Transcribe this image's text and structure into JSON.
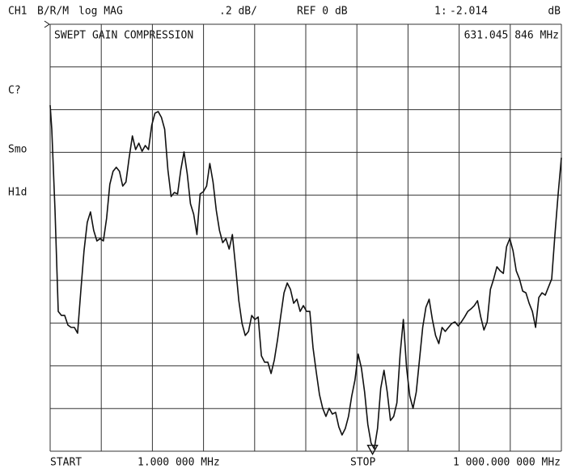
{
  "chart_data": {
    "type": "line",
    "channel": "CH1",
    "measurement": "B/R/M",
    "format": "log MAG",
    "scale": ".2 dB/",
    "reference": "REF 0 dB",
    "title": "SWEPT GAIN COMPRESSION",
    "softkeys": [
      "C?",
      "Smo",
      "H1d"
    ],
    "start_label": "START",
    "start_value": "1.000 000 MHz",
    "stop_label": "STOP",
    "stop_value": "1 000.000 000 MHz",
    "marker": {
      "number_label": "1:",
      "value": -2.014,
      "value_label": "-2.014",
      "unit": "dB",
      "x": 631.045846,
      "x_label": "631.045 846 MHz"
    },
    "xlim": [
      1,
      1000
    ],
    "ylim": [
      -2,
      0
    ],
    "color": "#111111",
    "grid": true,
    "x": [
      1.0,
      4.2,
      10.5,
      16.8,
      23.1,
      29.4,
      35.7,
      42.0,
      48.3,
      54.6,
      60.9,
      67.2,
      73.5,
      79.8,
      86.1,
      92.4,
      98.7,
      105.0,
      111.3,
      117.6,
      123.9,
      130.2,
      136.5,
      142.8,
      149.1,
      155.4,
      161.7,
      168.0,
      174.3,
      180.6,
      186.9,
      193.2,
      199.5,
      205.8,
      212.1,
      218.4,
      224.8,
      231.1,
      237.4,
      243.7,
      250.0,
      256.3,
      262.6,
      268.9,
      275.2,
      281.5,
      287.8,
      294.1,
      300.4,
      306.7,
      313.0,
      319.3,
      325.6,
      331.9,
      338.2,
      344.5,
      350.8,
      357.1,
      363.4,
      369.7,
      376.0,
      382.3,
      388.6,
      394.9,
      401.2,
      407.5,
      413.8,
      420.1,
      426.4,
      432.7,
      439.1,
      445.4,
      451.7,
      458.0,
      464.3,
      470.6,
      476.9,
      483.2,
      489.5,
      495.8,
      502.1,
      508.4,
      514.7,
      521.0,
      527.3,
      533.6,
      539.9,
      546.2,
      552.5,
      558.8,
      565.1,
      571.4,
      577.7,
      584.0,
      590.3,
      596.6,
      602.9,
      609.2,
      615.5,
      621.8,
      628.1,
      634.4,
      640.7,
      647.0,
      653.4,
      659.7,
      666.0,
      672.3,
      678.6,
      684.9,
      691.2,
      697.5,
      703.8,
      710.1,
      716.4,
      722.7,
      729.0,
      735.3,
      741.6,
      747.9,
      754.2,
      760.5,
      766.8,
      773.1,
      779.4,
      785.7,
      792.0,
      798.3,
      804.6,
      810.9,
      817.2,
      823.5,
      829.8,
      836.1,
      842.4,
      848.7,
      855.0,
      861.3,
      867.7,
      874.0,
      880.3,
      886.6,
      892.9,
      899.2,
      905.5,
      911.8,
      918.1,
      924.4,
      930.7,
      937.0,
      943.3,
      949.6,
      955.9,
      962.2,
      968.5,
      974.8,
      981.1,
      987.4,
      993.7,
      1000.0
    ],
    "values": [
      -0.379,
      -0.492,
      -0.871,
      -1.345,
      -1.364,
      -1.364,
      -1.409,
      -1.42,
      -1.42,
      -1.447,
      -1.25,
      -1.061,
      -0.928,
      -0.879,
      -0.966,
      -1.015,
      -1.004,
      -1.015,
      -0.909,
      -0.75,
      -0.689,
      -0.67,
      -0.689,
      -0.758,
      -0.739,
      -0.625,
      -0.523,
      -0.587,
      -0.557,
      -0.595,
      -0.568,
      -0.587,
      -0.473,
      -0.417,
      -0.409,
      -0.436,
      -0.492,
      -0.682,
      -0.807,
      -0.788,
      -0.795,
      -0.682,
      -0.598,
      -0.701,
      -0.841,
      -0.89,
      -0.985,
      -0.795,
      -0.784,
      -0.758,
      -0.652,
      -0.739,
      -0.871,
      -0.966,
      -1.023,
      -1.004,
      -1.053,
      -0.985,
      -1.136,
      -1.295,
      -1.402,
      -1.458,
      -1.439,
      -1.364,
      -1.383,
      -1.371,
      -1.553,
      -1.583,
      -1.583,
      -1.636,
      -1.572,
      -1.477,
      -1.364,
      -1.258,
      -1.212,
      -1.242,
      -1.307,
      -1.288,
      -1.345,
      -1.318,
      -1.345,
      -1.345,
      -1.515,
      -1.629,
      -1.735,
      -1.799,
      -1.837,
      -1.799,
      -1.826,
      -1.818,
      -1.886,
      -1.924,
      -1.894,
      -1.837,
      -1.742,
      -1.667,
      -1.545,
      -1.61,
      -1.723,
      -1.875,
      -1.962,
      -1.989,
      -1.894,
      -1.705,
      -1.621,
      -1.723,
      -1.856,
      -1.837,
      -1.773,
      -1.545,
      -1.383,
      -1.61,
      -1.742,
      -1.799,
      -1.723,
      -1.572,
      -1.42,
      -1.326,
      -1.288,
      -1.383,
      -1.458,
      -1.496,
      -1.42,
      -1.439,
      -1.42,
      -1.402,
      -1.394,
      -1.413,
      -1.394,
      -1.371,
      -1.345,
      -1.333,
      -1.318,
      -1.295,
      -1.371,
      -1.432,
      -1.394,
      -1.242,
      -1.193,
      -1.136,
      -1.155,
      -1.167,
      -1.042,
      -1.004,
      -1.061,
      -1.155,
      -1.193,
      -1.25,
      -1.258,
      -1.307,
      -1.345,
      -1.42,
      -1.28,
      -1.258,
      -1.269,
      -1.231,
      -1.193,
      -0.985,
      -0.795,
      -0.625
    ]
  }
}
